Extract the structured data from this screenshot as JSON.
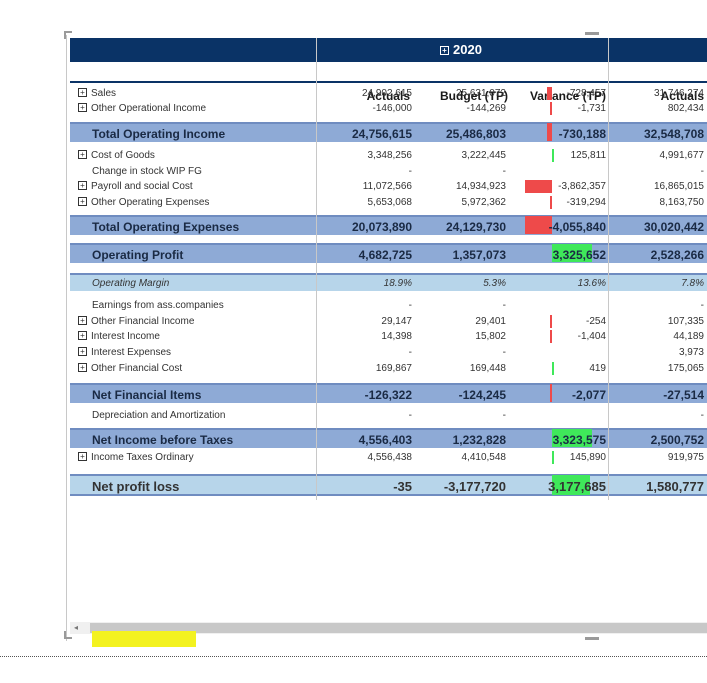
{
  "header": {
    "year": "2020",
    "columns": [
      "Actuals",
      "Budget (TP)",
      "Variance (TP)",
      "Actuals"
    ]
  },
  "rows": [
    {
      "label": "Sales",
      "expand": true,
      "type": "line",
      "a": "24,902,615",
      "b": "25,631,072",
      "v": "-728,457",
      "a2": "31,746,274"
    },
    {
      "label": "Other Operational Income",
      "expand": true,
      "type": "line",
      "a": "-146,000",
      "b": "-144,269",
      "v": "-1,731",
      "a2": "802,434"
    },
    {
      "label": "Total Operating Income",
      "type": "total",
      "a": "24,756,615",
      "b": "25,486,803",
      "v": "-730,188",
      "a2": "32,548,708"
    },
    {
      "label": "Cost of Goods",
      "expand": true,
      "type": "line",
      "a": "3,348,256",
      "b": "3,222,445",
      "v": "125,811",
      "a2": "4,991,677"
    },
    {
      "label": "Change in stock WIP FG",
      "type": "line",
      "a": "-",
      "b": "-",
      "v": "",
      "a2": "-"
    },
    {
      "label": "Payroll and social Cost",
      "expand": true,
      "type": "line",
      "a": "11,072,566",
      "b": "14,934,923",
      "v": "-3,862,357",
      "a2": "16,865,015"
    },
    {
      "label": "Other Operating Expenses",
      "expand": true,
      "type": "line",
      "a": "5,653,068",
      "b": "5,972,362",
      "v": "-319,294",
      "a2": "8,163,750"
    },
    {
      "label": "Total Operating Expenses",
      "type": "total",
      "a": "20,073,890",
      "b": "24,129,730",
      "v": "-4,055,840",
      "a2": "30,020,442"
    },
    {
      "label": "Operating Profit",
      "type": "total",
      "a": "4,682,725",
      "b": "1,357,073",
      "v": "3,325,652",
      "a2": "2,528,266"
    },
    {
      "label": "Operating Margin",
      "type": "margin",
      "a": "18.9%",
      "b": "5.3%",
      "v": "13.6%",
      "a2": "7.8%"
    },
    {
      "label": "Earnings from ass.companies",
      "type": "line",
      "a": "-",
      "b": "-",
      "v": "",
      "a2": "-"
    },
    {
      "label": "Other Financial Income",
      "expand": true,
      "type": "line",
      "a": "29,147",
      "b": "29,401",
      "v": "-254",
      "a2": "107,335"
    },
    {
      "label": "Interest Income",
      "expand": true,
      "type": "line",
      "a": "14,398",
      "b": "15,802",
      "v": "-1,404",
      "a2": "44,189"
    },
    {
      "label": "Interest Expenses",
      "expand": true,
      "type": "line",
      "a": "-",
      "b": "-",
      "v": "",
      "a2": "3,973"
    },
    {
      "label": "Other Financial Cost",
      "expand": true,
      "type": "line",
      "a": "169,867",
      "b": "169,448",
      "v": "419",
      "a2": "175,065"
    },
    {
      "label": "Net Financial Items",
      "type": "total",
      "a": "-126,322",
      "b": "-124,245",
      "v": "-2,077",
      "a2": "-27,514"
    },
    {
      "label": "Depreciation and Amortization",
      "type": "line",
      "a": "-",
      "b": "-",
      "v": "",
      "a2": "-"
    },
    {
      "label": "Net Income before Taxes",
      "type": "total",
      "a": "4,556,403",
      "b": "1,232,828",
      "v": "3,323,575",
      "a2": "2,500,752"
    },
    {
      "label": "Income Taxes Ordinary",
      "expand": true,
      "type": "line",
      "a": "4,556,438",
      "b": "4,410,548",
      "v": "145,890",
      "a2": "919,975"
    },
    {
      "label": "Net profit loss",
      "type": "net",
      "a": "-35",
      "b": "-3,177,720",
      "v": "3,177,685",
      "a2": "1,580,777"
    }
  ],
  "variance_bars": [
    {
      "row": 0,
      "color": "red",
      "fraction": 0.08
    },
    {
      "row": 1,
      "color": "red",
      "fraction": 0.01
    },
    {
      "row": 2,
      "color": "red",
      "fraction": 0.08
    },
    {
      "row": 3,
      "color": "green",
      "fraction": 0.02
    },
    {
      "row": 5,
      "color": "red",
      "fraction": 0.45
    },
    {
      "row": 6,
      "color": "red",
      "fraction": 0.04
    },
    {
      "row": 7,
      "color": "red",
      "fraction": 0.45
    },
    {
      "row": 8,
      "color": "green",
      "fraction": 0.67
    },
    {
      "row": 11,
      "color": "red",
      "fraction": 0.01
    },
    {
      "row": 12,
      "color": "red",
      "fraction": 0.01
    },
    {
      "row": 14,
      "color": "green",
      "fraction": 0.01
    },
    {
      "row": 15,
      "color": "red",
      "fraction": 0.01
    },
    {
      "row": 17,
      "color": "green",
      "fraction": 0.67
    },
    {
      "row": 18,
      "color": "green",
      "fraction": 0.02
    },
    {
      "row": 19,
      "color": "green",
      "fraction": 0.64
    }
  ],
  "colors": {
    "header_bg": "#0a3366",
    "total_bg": "#8eaad6",
    "margin_bg": "#b7d5ea",
    "negative_bar": "#ee4a4a",
    "positive_bar": "#3fe85a",
    "highlight": "#f3f220"
  },
  "icons": {
    "expand": "plus-box-icon",
    "scroll_left": "scroll-left-arrow-icon"
  }
}
